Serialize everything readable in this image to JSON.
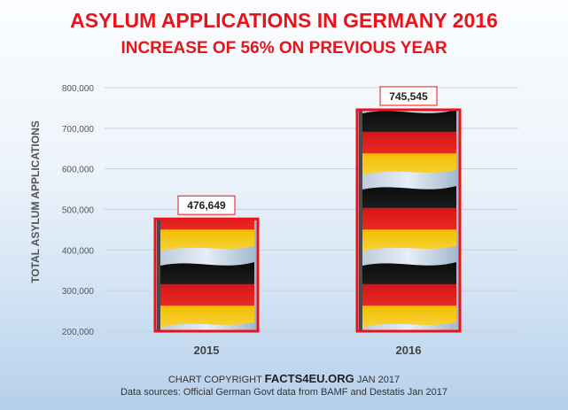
{
  "header": {
    "title": "ASYLUM APPLICATIONS IN GERMANY 2016",
    "subtitle": "INCREASE OF 56% ON PREVIOUS YEAR"
  },
  "footer": {
    "copyright_prefix": "CHART COPYRIGHT",
    "copyright_site": "FACTS4EU.ORG",
    "copyright_suffix": "JAN 2017",
    "sources": "Data sources: Official German Govt data from BAMF and Destatis Jan 2017"
  },
  "colors": {
    "title": "#e8141a",
    "bar_border": "#e8141a",
    "flag_black": "#111111",
    "flag_red": "#e0141a",
    "flag_gold": "#f5c300"
  },
  "chart_data": {
    "type": "bar",
    "categories": [
      "2015",
      "2016"
    ],
    "values": [
      476649,
      745545
    ],
    "value_labels": [
      "476,649",
      "745,545"
    ],
    "ylabel": "TOTAL ASYLUM APPLICATIONS",
    "ylim": [
      200000,
      800000
    ],
    "yticks": [
      200000,
      300000,
      400000,
      500000,
      600000,
      700000,
      800000
    ],
    "ytick_labels": [
      "200,000",
      "300,000",
      "400,000",
      "500,000",
      "600,000",
      "700,000",
      "800,000"
    ],
    "grid": true,
    "bar_fill": "german-flag-pictograph"
  }
}
